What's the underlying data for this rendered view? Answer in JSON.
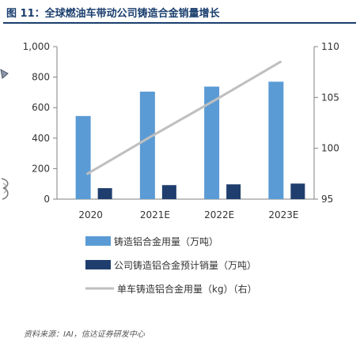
{
  "figure": {
    "title": "图 11：全球燃油车带动公司铸造合金销量增长",
    "source": "资料来源：IAI，信达证券研发中心"
  },
  "colors": {
    "bar_light": "#5b9bd5",
    "bar_dark": "#1f3e6e",
    "line": "#bfbfbf",
    "title": "#1a3e6e",
    "axis": "#808080"
  },
  "chart_data": {
    "type": "bar",
    "categories": [
      "2020",
      "2021E",
      "2022E",
      "2023E"
    ],
    "series": [
      {
        "name": "铸造铝合金用量（万吨）",
        "type": "bar",
        "axis": "left",
        "color": "#5b9bd5",
        "values": [
          545,
          705,
          738,
          770
        ]
      },
      {
        "name": "公司铸造铝合金预计销量（万吨）",
        "type": "bar",
        "axis": "left",
        "color": "#1f3e6e",
        "values": [
          72,
          92,
          97,
          102
        ]
      },
      {
        "name": "单车铸造铝合金用量（kg）（右）",
        "type": "line",
        "axis": "right",
        "color": "#bfbfbf",
        "values": [
          97.5,
          101.2,
          104.8,
          108.5
        ]
      }
    ],
    "left_axis": {
      "min": 0,
      "max": 1000,
      "ticks": [
        0,
        200,
        400,
        600,
        800,
        1000
      ],
      "tick_labels": [
        "0",
        "200",
        "400",
        "600",
        "800",
        "1,000"
      ]
    },
    "right_axis": {
      "min": 95,
      "max": 110,
      "ticks": [
        95,
        100,
        105,
        110
      ],
      "tick_labels": [
        "95",
        "100",
        "105",
        "110"
      ]
    },
    "grid": false,
    "legend_position": "bottom"
  }
}
